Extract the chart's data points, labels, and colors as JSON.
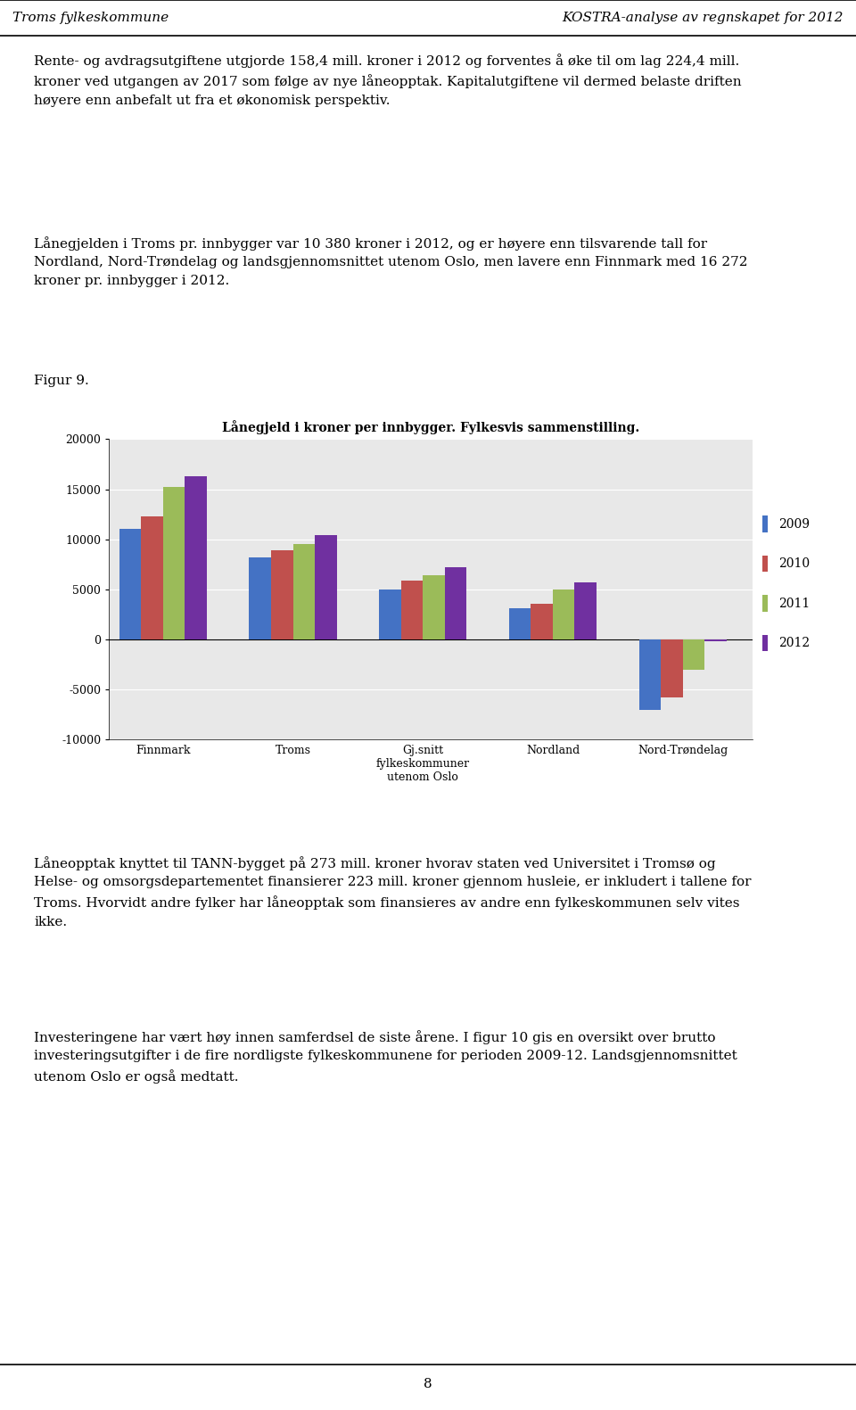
{
  "title": "Lånegjeld i kroner per innbygger. Fylkesvis sammenstilling.",
  "categories": [
    "Finnmark",
    "Troms",
    "Gj.snitt\nfylkeskommuner\nutenom Oslo",
    "Nordland",
    "Nord-Trøndelag"
  ],
  "years": [
    "2009",
    "2010",
    "2011",
    "2012"
  ],
  "values": {
    "2009": [
      11000,
      8200,
      5000,
      3100,
      -7000
    ],
    "2010": [
      12300,
      8900,
      5900,
      3600,
      -5800
    ],
    "2011": [
      15200,
      9500,
      6400,
      5000,
      -3000
    ],
    "2012": [
      16300,
      10400,
      7200,
      5700,
      -200
    ]
  },
  "colors": {
    "2009": "#4472C4",
    "2010": "#C0504D",
    "2011": "#9BBB59",
    "2012": "#7030A0"
  },
  "ylim": [
    -10000,
    20000
  ],
  "yticks": [
    -10000,
    -5000,
    0,
    5000,
    10000,
    15000,
    20000
  ],
  "plot_bg_color": "#E8E8E8",
  "header_left": "Troms fylkeskommune",
  "header_right": "KOSTRA-analyse av regnskapet for 2012",
  "figur_label": "Figur 9.",
  "body_text_1": "Rente- og avdragsutgiftene utgjorde 158,4 mill. kroner i 2012 og forventes å øke til om lag 224,4 mill.\nkroner ved utgangen av 2017 som følge av nye låneopptak. Kapitalutgiftene vil dermed belaste driften\nhøyere enn anbefalt ut fra et økonomisk perspektiv.",
  "body_text_2": "Lånegjelden i Troms pr. innbygger var 10 380 kroner i 2012, og er høyere enn tilsvarende tall for\nNordland, Nord-Trøndelag og landsgjennomsnittet utenom Oslo, men lavere enn Finnmark med 16 272\nkroner pr. innbygger i 2012.",
  "body_text_3": "Låneopptak knyttet til TANN-bygget på 273 mill. kroner hvorav staten ved Universitet i Tromsø og\nHelse- og omsorgsdepartementet finansierer 223 mill. kroner gjennom husleie, er inkludert i tallene for\nTroms. Hvorvidt andre fylker har låneopptak som finansieres av andre enn fylkeskommunen selv vites\nikke.",
  "body_text_4": "Investeringene har vært høy innen samferdsel de siste årene. I figur 10 gis en oversikt over brutto\ninvesteringsutgifter i de fire nordligste fylkeskommunene for perioden 2009-12. Landsgjennomsnittet\nutenom Oslo er også medtatt.",
  "page_number": "8"
}
